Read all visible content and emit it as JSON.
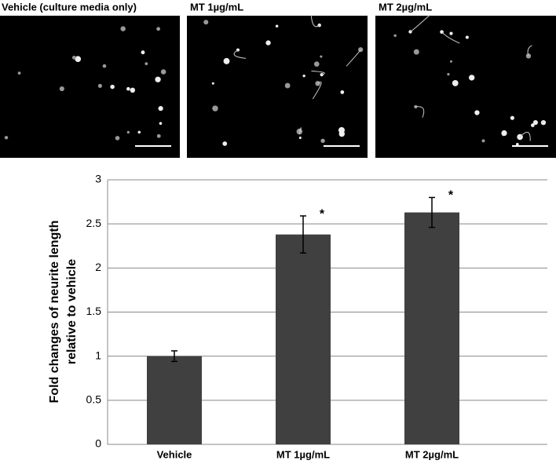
{
  "panels": [
    {
      "title": "Vehicle (culture media only)"
    },
    {
      "title": "MT 1µg/mL"
    },
    {
      "title": "MT 2µg/mL"
    }
  ],
  "chart_data": {
    "type": "bar",
    "y_label": [
      "Fold changes of neurite length",
      "relative to vehicle"
    ],
    "categories": [
      "Vehicle",
      "MT 1µg/mL",
      "MT 2µg/mL"
    ],
    "values": [
      1.0,
      2.38,
      2.63
    ],
    "errors": [
      0.06,
      0.21,
      0.17
    ],
    "significance": [
      null,
      "*",
      "*"
    ],
    "color": "#404040",
    "ylim": [
      0,
      3
    ],
    "yticks": [
      0,
      0.5,
      1,
      1.5,
      2,
      2.5,
      3
    ],
    "grid": true
  }
}
